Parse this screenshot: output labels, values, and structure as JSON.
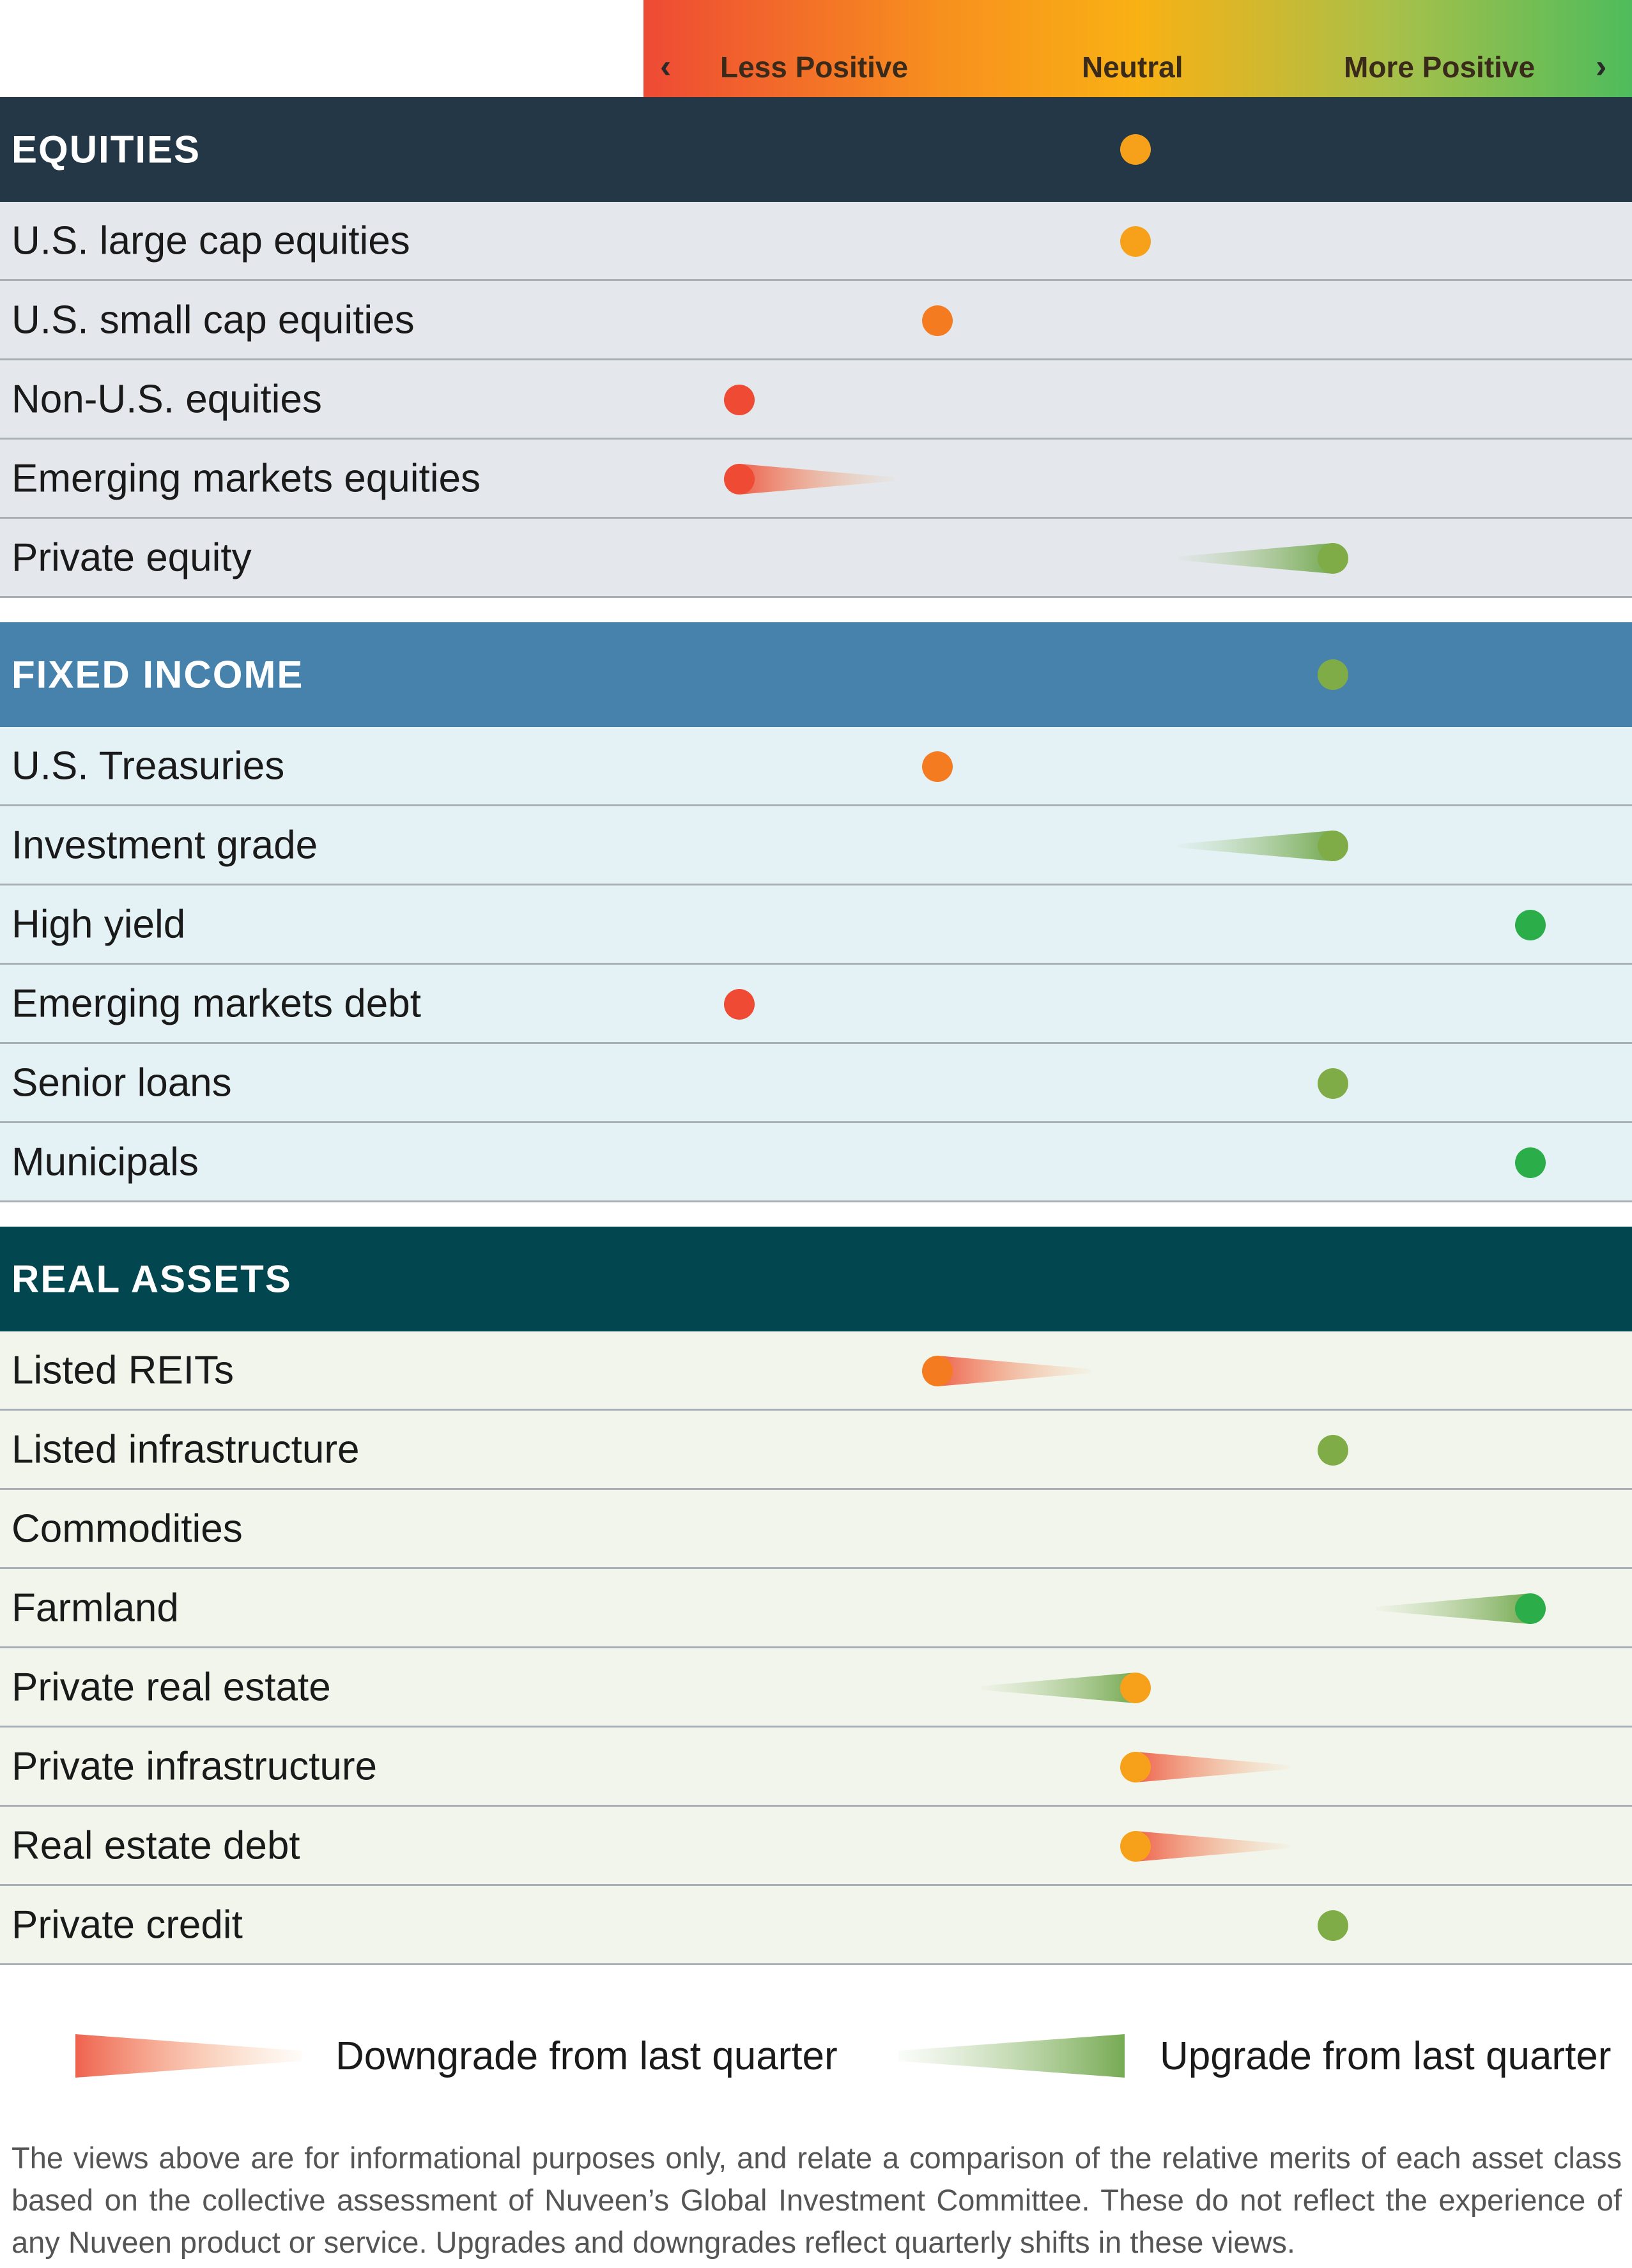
{
  "scale": {
    "left_arrow": "‹",
    "right_arrow": "›",
    "less": "Less Positive",
    "neutral": "Neutral",
    "more": "More Positive"
  },
  "chart_data": {
    "type": "dot-scale",
    "levels": 5,
    "colors": {
      "1": "#ee4a34",
      "2": "#f47b20",
      "3": "#f7a11a",
      "4": "#7fac46",
      "5": "#2bae4a"
    },
    "sections": [
      {
        "name": "EQUITIES",
        "header_color": "#233746",
        "row_color": "#e4e7ec",
        "value": 3,
        "items": [
          {
            "label": "U.S. large cap equities",
            "value": 3,
            "change": "none"
          },
          {
            "label": "U.S. small cap equities",
            "value": 2,
            "change": "none"
          },
          {
            "label": "Non-U.S. equities",
            "value": 1,
            "change": "none"
          },
          {
            "label": "Emerging markets equities",
            "value": 1,
            "change": "downgrade"
          },
          {
            "label": "Private equity",
            "value": 4,
            "change": "upgrade"
          }
        ]
      },
      {
        "name": "FIXED INCOME",
        "header_color": "#4682ab",
        "row_color": "#e4f2f6",
        "value": 4,
        "items": [
          {
            "label": "U.S. Treasuries",
            "value": 2,
            "change": "none"
          },
          {
            "label": "Investment grade",
            "value": 4,
            "change": "upgrade"
          },
          {
            "label": "High yield",
            "value": 5,
            "change": "none"
          },
          {
            "label": "Emerging markets debt",
            "value": 1,
            "change": "none"
          },
          {
            "label": "Senior loans",
            "value": 4,
            "change": "none"
          },
          {
            "label": "Municipals",
            "value": 5,
            "change": "none"
          }
        ]
      },
      {
        "name": "REAL ASSETS",
        "header_color": "#02464f",
        "row_color": "#f2f5ec",
        "value": null,
        "items": [
          {
            "label": "Listed REITs",
            "value": 2,
            "change": "downgrade"
          },
          {
            "label": "Listed infrastructure",
            "value": 4,
            "change": "none"
          },
          {
            "label": "Commodities",
            "value": null,
            "change": "none"
          },
          {
            "label": "Farmland",
            "value": 5,
            "change": "upgrade"
          },
          {
            "label": "Private real estate",
            "value": 3,
            "change": "upgrade"
          },
          {
            "label": "Private infrastructure",
            "value": 3,
            "change": "downgrade"
          },
          {
            "label": "Real estate debt",
            "value": 3,
            "change": "downgrade"
          },
          {
            "label": "Private credit",
            "value": 4,
            "change": "none"
          }
        ]
      }
    ]
  },
  "legend": {
    "downgrade": "Downgrade from last quarter",
    "upgrade": "Upgrade from last quarter",
    "downgrade_color": "#ee5a45",
    "upgrade_color": "#8cbf6e"
  },
  "footnote": "The views above are for informational purposes only, and relate a comparison of the relative merits of each asset class based on the collective assessment of Nuveen’s Global Investment Committee. These do not reflect the experience of any Nuveen product or service. Upgrades and downgrades reflect quarterly shifts in these views."
}
